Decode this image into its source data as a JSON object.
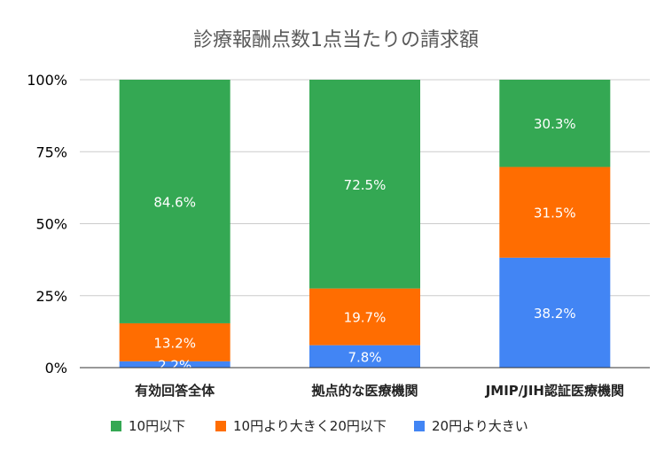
{
  "chart_data": {
    "type": "bar",
    "stacked": true,
    "percent": true,
    "title": "診療報酬点数1点当たりの請求額",
    "xlabel": "",
    "ylabel": "",
    "ylim": [
      0,
      100
    ],
    "yticks": [
      "0%",
      "25%",
      "50%",
      "75%",
      "100%"
    ],
    "ytick_values": [
      0,
      25,
      50,
      75,
      100
    ],
    "categories": [
      "有効回答全体",
      "拠点的な医療機関",
      "JMIP/JIH認証医療機関"
    ],
    "series": [
      {
        "name": "10円以下",
        "color": "#34a853",
        "values": [
          84.6,
          72.5,
          30.3
        ],
        "labels": [
          "84.6%",
          "72.5%",
          "30.3%"
        ]
      },
      {
        "name": "10円より大きく20円以下",
        "color": "#ff6d01",
        "values": [
          13.2,
          19.7,
          31.5
        ],
        "labels": [
          "13.2%",
          "19.7%",
          "31.5%"
        ]
      },
      {
        "name": "20円より大きい",
        "color": "#4285f4",
        "values": [
          2.2,
          7.8,
          38.2
        ],
        "labels": [
          "2.2%",
          "7.8%",
          "38.2%"
        ]
      }
    ],
    "stack_order": [
      2,
      1,
      0
    ],
    "grid": true,
    "legend_position": "bottom"
  }
}
